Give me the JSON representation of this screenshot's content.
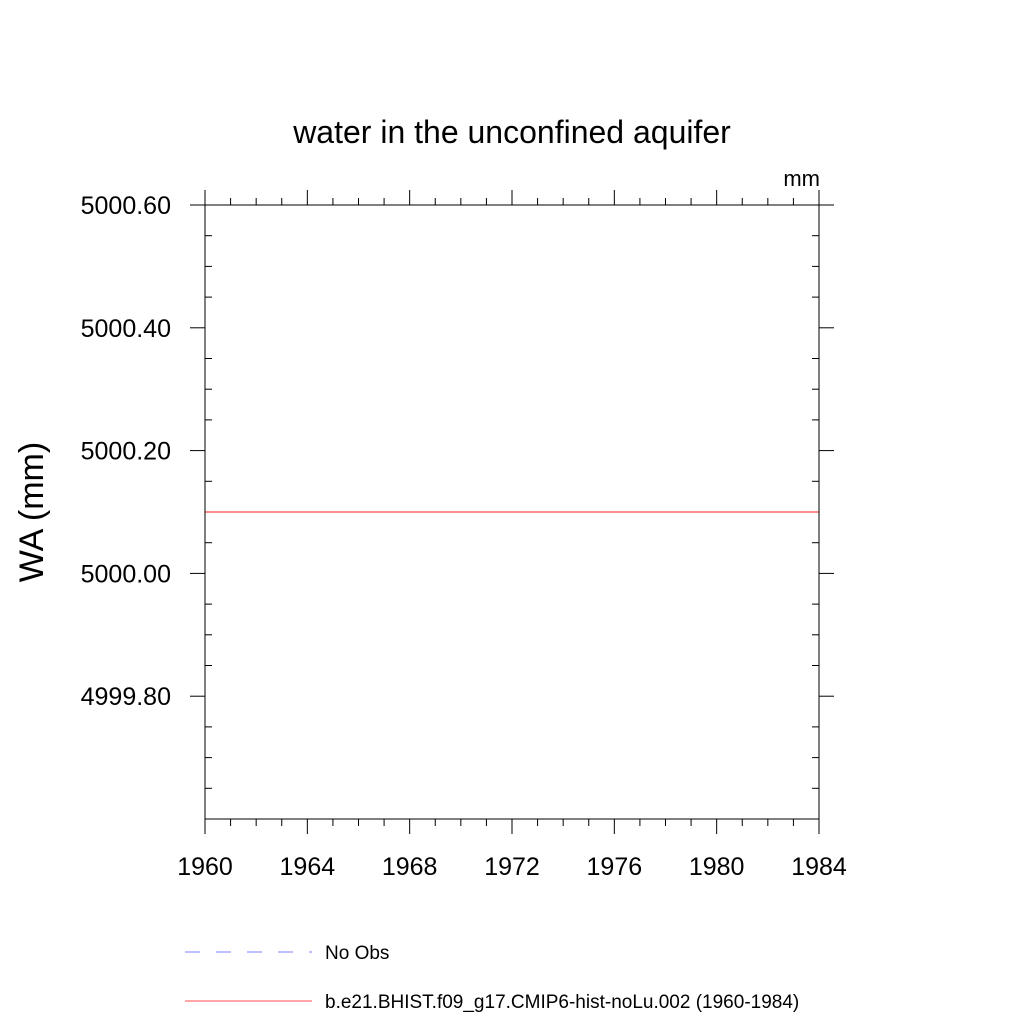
{
  "chart_data": {
    "type": "line",
    "title": "water in the unconfined aquifer",
    "units": "mm",
    "ylabel": "WA  (mm)",
    "xlabel": "",
    "xlim": [
      1960,
      1984
    ],
    "ylim": [
      4999.6,
      5000.6
    ],
    "x_ticks": [
      1960,
      1964,
      1968,
      1972,
      1976,
      1980,
      1984
    ],
    "x_tick_labels": [
      "1960",
      "1964",
      "1968",
      "1972",
      "1976",
      "1980",
      "1984"
    ],
    "y_ticks": [
      4999.8,
      5000.0,
      5000.2,
      5000.4,
      5000.6
    ],
    "y_tick_labels": [
      "4999.80",
      "5000.00",
      "5000.20",
      "5000.40",
      "5000.60"
    ],
    "x_minor_step": 1,
    "y_minor_step": 0.05,
    "grid": false,
    "legend_position": "bottom",
    "series": [
      {
        "name": "No Obs",
        "color": "#7f7fff",
        "dashed": true,
        "x": [],
        "values": []
      },
      {
        "name": "b.e21.BHIST.f09_g17.CMIP6-hist-noLu.002 (1960-1984)",
        "color": "#ff4d4d",
        "dashed": false,
        "x": [
          1960,
          1984
        ],
        "values": [
          5000.1,
          5000.1
        ]
      }
    ]
  }
}
